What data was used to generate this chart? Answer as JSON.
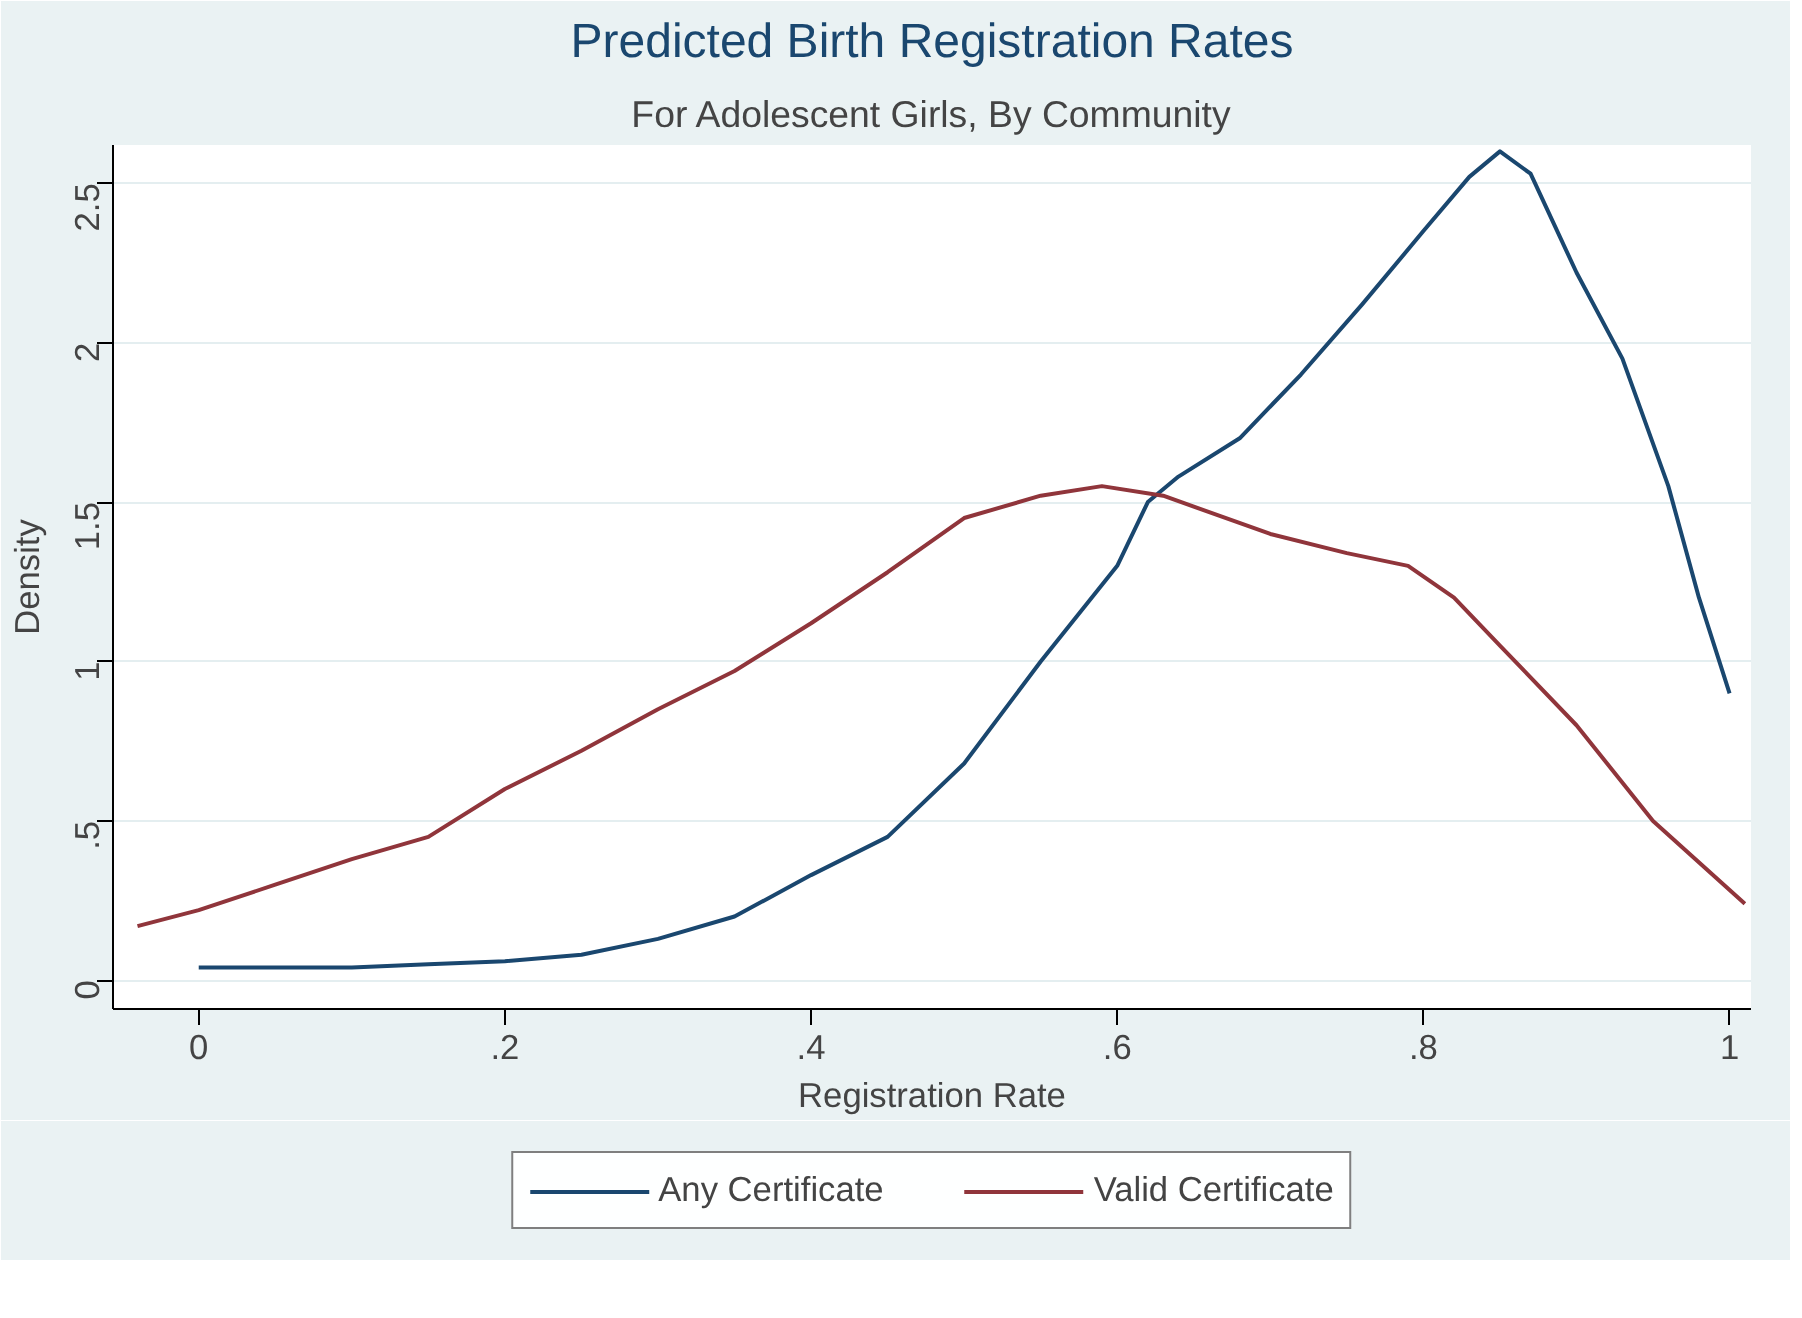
{
  "chart_data": {
    "type": "line",
    "title": "Predicted Birth Registration Rates",
    "subtitle": "For Adolescent Girls, By Community",
    "xlabel": "Registration Rate",
    "ylabel": "Density",
    "xlim": [
      -0.056,
      1.014
    ],
    "ylim": [
      -0.09,
      2.62
    ],
    "xticks": [
      {
        "value": 0,
        "label": "0"
      },
      {
        "value": 0.2,
        "label": ".2"
      },
      {
        "value": 0.4,
        "label": ".4"
      },
      {
        "value": 0.6,
        "label": ".6"
      },
      {
        "value": 0.8,
        "label": ".8"
      },
      {
        "value": 1,
        "label": "1"
      }
    ],
    "yticks": [
      {
        "value": 0,
        "label": "0"
      },
      {
        "value": 0.5,
        "label": ".5"
      },
      {
        "value": 1,
        "label": "1"
      },
      {
        "value": 1.5,
        "label": "1.5"
      },
      {
        "value": 2,
        "label": "2"
      },
      {
        "value": 2.5,
        "label": "2.5"
      }
    ],
    "grid": "y",
    "legend": "bottom",
    "line_style": "solid",
    "series": [
      {
        "name": "Any Certificate",
        "color": "#1a476f",
        "x": [
          0,
          0.05,
          0.1,
          0.15,
          0.2,
          0.25,
          0.3,
          0.35,
          0.4,
          0.45,
          0.5,
          0.55,
          0.6,
          0.62,
          0.64,
          0.68,
          0.72,
          0.76,
          0.8,
          0.83,
          0.85,
          0.87,
          0.9,
          0.93,
          0.96,
          0.98,
          1.0
        ],
        "values": [
          0.04,
          0.04,
          0.04,
          0.05,
          0.06,
          0.08,
          0.13,
          0.2,
          0.33,
          0.45,
          0.68,
          1.0,
          1.3,
          1.5,
          1.58,
          1.7,
          1.9,
          2.12,
          2.35,
          2.52,
          2.6,
          2.53,
          2.22,
          1.95,
          1.55,
          1.2,
          0.9
        ]
      },
      {
        "name": "Valid Certificate",
        "color": "#90353b",
        "x": [
          -0.04,
          0,
          0.05,
          0.1,
          0.15,
          0.2,
          0.25,
          0.3,
          0.35,
          0.4,
          0.45,
          0.5,
          0.55,
          0.59,
          0.63,
          0.7,
          0.75,
          0.79,
          0.82,
          0.85,
          0.9,
          0.95,
          1.01
        ],
        "values": [
          0.17,
          0.22,
          0.3,
          0.38,
          0.45,
          0.6,
          0.72,
          0.85,
          0.97,
          1.12,
          1.28,
          1.45,
          1.52,
          1.55,
          1.52,
          1.4,
          1.34,
          1.3,
          1.2,
          1.05,
          0.8,
          0.5,
          0.24
        ]
      }
    ]
  }
}
